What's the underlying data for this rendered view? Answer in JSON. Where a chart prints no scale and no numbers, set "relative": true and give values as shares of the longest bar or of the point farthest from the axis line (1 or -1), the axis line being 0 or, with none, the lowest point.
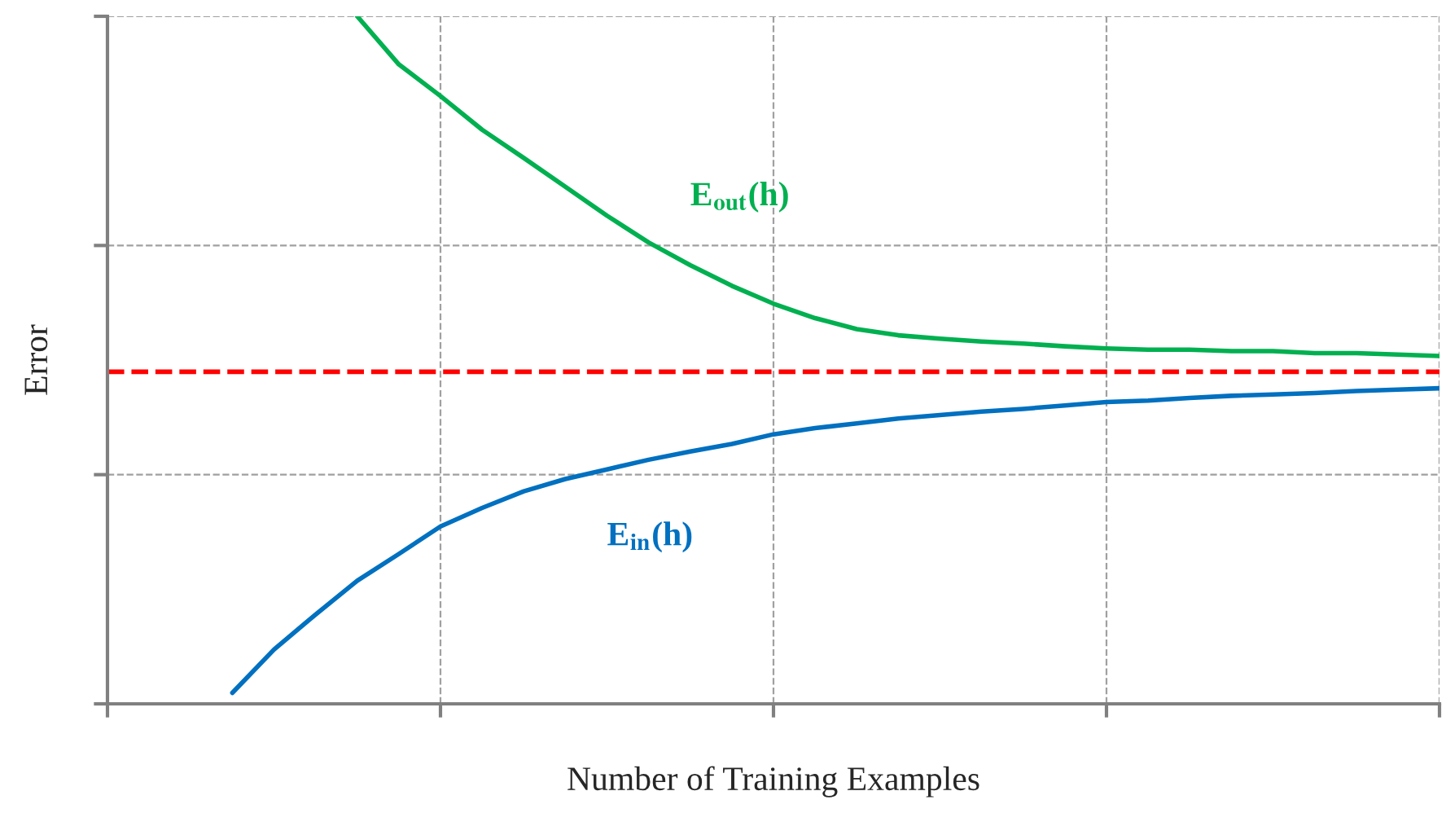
{
  "chart_data": {
    "type": "line",
    "relative": true,
    "xlabel": "Number of Training Examples",
    "ylabel": "Error",
    "categories": [
      null,
      null,
      null,
      null,
      null,
      null,
      null,
      null,
      null,
      null,
      null,
      null,
      null,
      null,
      null,
      null,
      null,
      null,
      null,
      null,
      null,
      null,
      null,
      null,
      null,
      null,
      null,
      null,
      null,
      null,
      null,
      null,
      null
    ],
    "series": [
      {
        "name": "E$_{out}$(h)",
        "color": "#00b050",
        "values": [
          null,
          null,
          null,
          null,
          null,
          null,
          1.0,
          0.93,
          0.884,
          0.835,
          0.794,
          0.752,
          0.71,
          0.671,
          0.638,
          0.608,
          0.582,
          0.561,
          0.545,
          0.536,
          0.531,
          0.527,
          0.524,
          0.52,
          0.517,
          0.515,
          0.515,
          0.513,
          0.513,
          0.51,
          0.51,
          0.508,
          0.506
        ]
      },
      {
        "name": "E$_{in}$(h)",
        "color": "#0070c0",
        "values": [
          null,
          null,
          null,
          0.016,
          0.079,
          0.13,
          0.179,
          0.218,
          0.258,
          0.285,
          0.309,
          0.327,
          0.341,
          0.355,
          0.367,
          0.378,
          0.392,
          0.401,
          0.408,
          0.415,
          0.42,
          0.425,
          0.429,
          0.434,
          0.439,
          0.441,
          0.445,
          0.448,
          0.45,
          0.452,
          0.455,
          0.457,
          0.459
        ]
      }
    ],
    "ref_lines": [
      {
        "axis": "y",
        "value": 0.483,
        "color": "#ff0000",
        "line_style": "dashed"
      }
    ],
    "grid": true,
    "legend": false,
    "marker": "none",
    "line_style": "solid"
  }
}
